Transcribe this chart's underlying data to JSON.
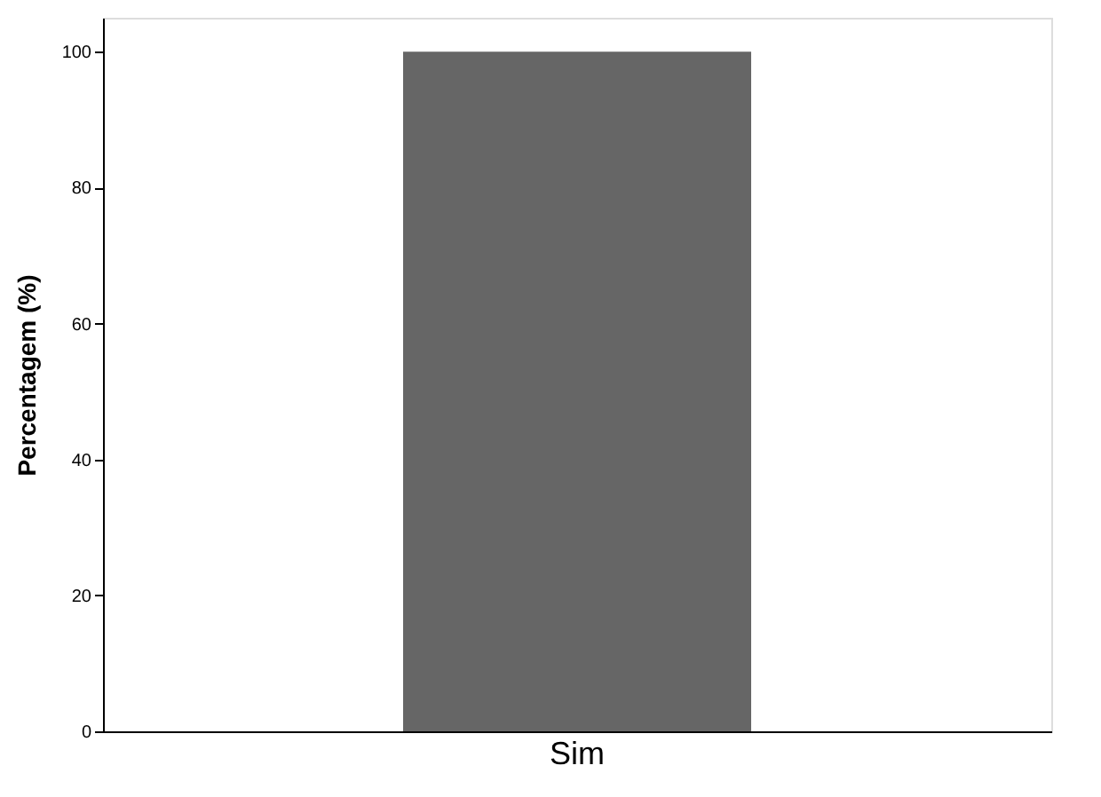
{
  "chart_data": {
    "type": "bar",
    "ylabel": "Percentagem (%)",
    "categories": [
      "Sim"
    ],
    "values": [
      100
    ],
    "color": "#666666",
    "ylim": [
      0,
      105
    ],
    "yticks": [
      0,
      20,
      40,
      60,
      80,
      100
    ],
    "grid": false
  }
}
